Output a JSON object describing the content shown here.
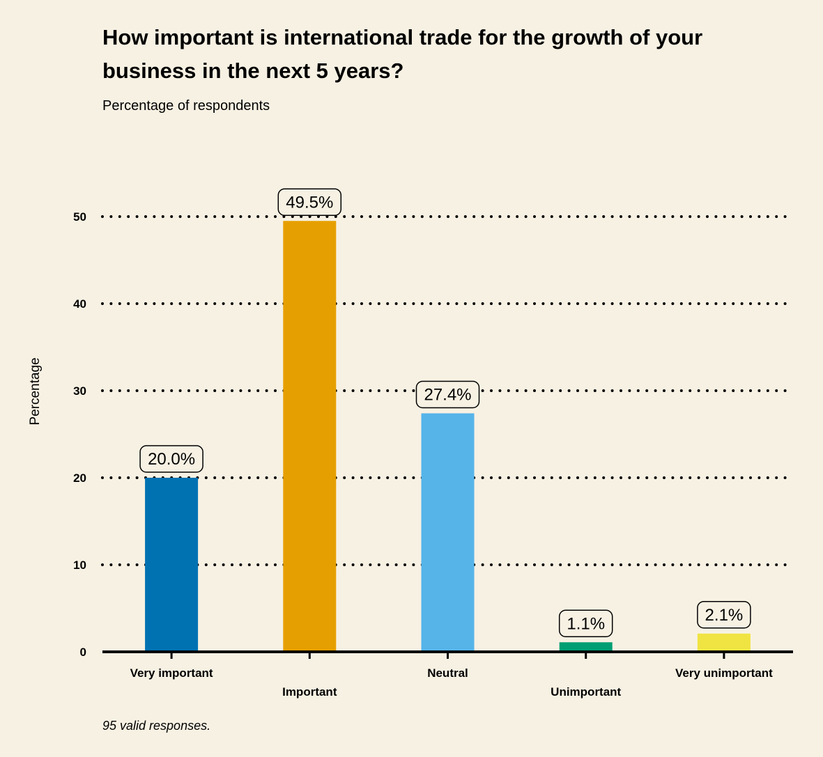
{
  "chart_data": {
    "type": "bar",
    "title": "How important is international trade for the growth of your business in the next 5 years?",
    "subtitle": "Percentage of respondents",
    "ylabel": "Percentage",
    "xlabel": "",
    "ylim": [
      0,
      50
    ],
    "yticks": [
      0,
      10,
      20,
      30,
      40,
      50
    ],
    "grid": true,
    "categories": [
      "Very important",
      "Important",
      "Neutral",
      "Unimportant",
      "Very unimportant"
    ],
    "values": [
      20.0,
      49.5,
      27.4,
      1.1,
      2.1
    ],
    "value_labels": [
      "20.0%",
      "49.5%",
      "27.4%",
      "1.1%",
      "2.1%"
    ],
    "colors": [
      "#0072b2",
      "#e69f00",
      "#56b4e9",
      "#009e73",
      "#f0e442"
    ],
    "footnote": "95 valid responses."
  }
}
